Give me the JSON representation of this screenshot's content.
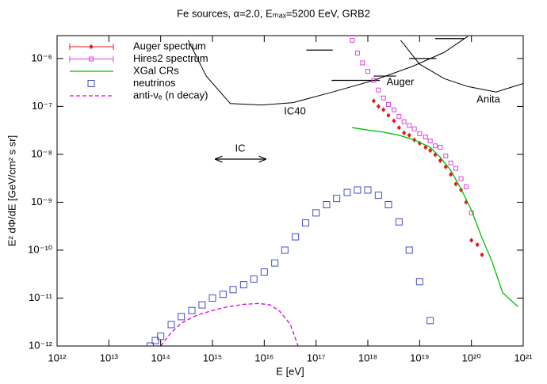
{
  "chart_data": {
    "type": "line",
    "title": "Fe sources, α=2.0, Eₘₐₓ=5200 EeV, GRB2",
    "x_label": "E [eV]",
    "y_label": "E² dΦ/dE [GeV/cm² s sr]",
    "log_x": true,
    "log_y": true,
    "xlim": [
      1000000000000.0,
      1e+21
    ],
    "ylim": [
      1e-12,
      3e-06
    ],
    "xticks": [
      {
        "value": 1000000000000.0,
        "label": "10¹²"
      },
      {
        "value": 10000000000000.0,
        "label": "10¹³"
      },
      {
        "value": 100000000000000.0,
        "label": "10¹⁴"
      },
      {
        "value": 1000000000000000.0,
        "label": "10¹⁵"
      },
      {
        "value": 1e+16,
        "label": "10¹⁶"
      },
      {
        "value": 1e+17,
        "label": "10¹⁷"
      },
      {
        "value": 1e+18,
        "label": "10¹⁸"
      },
      {
        "value": 1e+19,
        "label": "10¹⁹"
      },
      {
        "value": 1e+20,
        "label": "10²⁰"
      },
      {
        "value": 1e+21,
        "label": "10²¹"
      }
    ],
    "yticks": [
      {
        "value": 1e-12,
        "label": "10⁻¹²"
      },
      {
        "value": 1e-11,
        "label": "10⁻¹¹"
      },
      {
        "value": 1e-10,
        "label": "10⁻¹⁰"
      },
      {
        "value": 1e-09,
        "label": "10⁻⁹"
      },
      {
        "value": 1e-08,
        "label": "10⁻⁸"
      },
      {
        "value": 1e-07,
        "label": "10⁻⁷"
      },
      {
        "value": 1e-06,
        "label": "10⁻⁶"
      }
    ],
    "legend": "top-left",
    "series": [
      {
        "name": "Auger spectrum",
        "color": "#e41a1c",
        "style": "filled-circle",
        "x": [
          1.3e+18,
          1.6e+18,
          2e+18,
          2.5e+18,
          3.2e+18,
          4e+18,
          5e+18,
          6.3e+18,
          7.9e+18,
          1e+19,
          1.3e+19,
          1.6e+19,
          2e+19,
          2.5e+19,
          3.2e+19,
          4e+19,
          5e+19,
          6.3e+19,
          7.9e+19,
          1e+20,
          1.3e+20,
          1.6e+20
        ],
        "values": [
          1.3e-07,
          1e-07,
          8.5e-08,
          6.5e-08,
          5e-08,
          3.6e-08,
          2.8e-08,
          2.5e-08,
          2e-08,
          1.7e-08,
          1.4e-08,
          1.2e-08,
          9.8e-09,
          7.4e-09,
          5.5e-09,
          3.8e-09,
          2.4e-09,
          1.8e-09,
          1e-09,
          1.6e-10,
          1.3e-10,
          8e-11
        ]
      },
      {
        "name": "Hires2 spectrum",
        "color": "#e040e0",
        "style": "open-square-small",
        "x": [
          5e+17,
          6.3e+17,
          7.9e+17,
          1e+18,
          1.3e+18,
          1.6e+18,
          2e+18,
          2.5e+18,
          3.2e+18,
          4e+18,
          5e+18,
          6.3e+18,
          7.9e+18,
          1e+19,
          1.3e+19,
          1.6e+19,
          2e+19,
          2.5e+19,
          3.2e+19,
          4e+19,
          5e+19,
          6.3e+19,
          7.9e+19,
          1e+20
        ],
        "values": [
          2.4e-06,
          1.3e-06,
          8.1e-07,
          5.4e-07,
          3.5e-07,
          2.2e-07,
          1.5e-07,
          1.1e-07,
          8.5e-08,
          6.2e-08,
          4.8e-08,
          4e-08,
          3.4e-08,
          2.7e-08,
          2.3e-08,
          1.9e-08,
          1.5e-08,
          1.4e-08,
          9.3e-09,
          6.6e-09,
          5.1e-09,
          3.1e-09,
          2.1e-09,
          6e-10
        ]
      },
      {
        "name": "XGal CRs",
        "color": "#00c000",
        "style": "line",
        "x": [
          5e+17,
          1e+18,
          2e+18,
          4e+18,
          7.9e+18,
          1.6e+19,
          2.5e+19,
          4e+19,
          6.3e+19,
          1e+20,
          1.6e+20,
          2.5e+20,
          4e+20,
          7.9e+20
        ],
        "values": [
          3.6e-08,
          3.2e-08,
          2.9e-08,
          2.5e-08,
          2e-08,
          1.4e-08,
          8.7e-09,
          4.6e-09,
          1.9e-09,
          6.8e-10,
          1.8e-10,
          5.8e-11,
          1.3e-11,
          6.6e-12
        ]
      },
      {
        "name": "neutrinos",
        "color": "#4050c8",
        "style": "open-square",
        "x": [
          63000000000000.0,
          79000000000000.0,
          100000000000000.0,
          160000000000000.0,
          250000000000000.0,
          400000000000000.0,
          630000000000000.0,
          1000000000000000.0,
          1600000000000000.0,
          2500000000000000.0,
          4000000000000000.0,
          6300000000000000.0,
          1e+16,
          1.6e+16,
          2.5e+16,
          4e+16,
          6.3e+16,
          1e+17,
          1.6e+17,
          2.5e+17,
          4e+17,
          6.3e+17,
          1e+18,
          1.6e+18,
          2.5e+18,
          4e+18,
          6.3e+18,
          1e+19,
          1.6e+19
        ],
        "values": [
          1e-12,
          1.3e-12,
          1.6e-12,
          2.8e-12,
          4.1e-12,
          5.5e-12,
          7.2e-12,
          1e-11,
          1.2e-11,
          1.5e-11,
          1.9e-11,
          2.5e-11,
          3.5e-11,
          5.4e-11,
          1e-10,
          1.9e-10,
          3.7e-10,
          6e-10,
          8.9e-10,
          1.2e-09,
          1.6e-09,
          1.8e-09,
          1.8e-09,
          1.4e-09,
          8.9e-10,
          3.9e-10,
          1e-10,
          2.2e-11,
          3.4e-12
        ]
      },
      {
        "name": "anti-νₑ (n decay)",
        "color": "#e000e0",
        "style": "dashed",
        "x": [
          100000000000000.0,
          160000000000000.0,
          250000000000000.0,
          500000000000000.0,
          1000000000000000.0,
          2000000000000000.0,
          4000000000000000.0,
          7900000000000000.0,
          1.3e+16,
          2e+16,
          3.2e+16,
          4.5e+16
        ],
        "values": [
          1e-12,
          1.9e-12,
          3e-12,
          4.4e-12,
          5.5e-12,
          6.6e-12,
          7.4e-12,
          7.7e-12,
          7.2e-12,
          5.3e-12,
          2.8e-12,
          1e-12
        ]
      }
    ],
    "limits": [
      {
        "label": "IC40",
        "color": "#000000",
        "x": [
          340000000000000.0,
          760000000000000.0,
          2200000000000000.0,
          8900000000000000.0,
          3.6e+16,
          2.1e+17,
          1.3e+18,
          7.2e+18,
          3e+19,
          8.5e+19
        ],
        "values": [
          2.4e-06,
          4.3e-07,
          1.15e-07,
          1.07e-07,
          1.2e-07,
          2e-07,
          3.5e-07,
          6.8e-07,
          1.35e-06,
          2.9e-06
        ]
      },
      {
        "label": "Anita",
        "color": "#000000",
        "x": [
          4.3e+18,
          1e+19,
          3e+19,
          8.5e+19,
          3e+20,
          1e+21
        ],
        "values": [
          2.4e-06,
          7.6e-07,
          3.8e-07,
          2.6e-07,
          2e-07,
          3e-07
        ]
      }
    ],
    "steps": {
      "label": "Auger",
      "color": "#000000",
      "segments": [
        {
          "x": [
            6.5e+16,
            2.1e+17
          ],
          "value": 1.5e-06
        },
        {
          "x": [
            2e+17,
            1.7e+18
          ],
          "value": 3.5e-07
        },
        {
          "x": [
            1.3e+18,
            3.5e+18
          ],
          "value": 4.3e-07
        },
        {
          "x": [
            6.3e+18,
            2.1e+19
          ],
          "value": 1e-06
        },
        {
          "x": [
            2e+19,
            7.2e+19
          ],
          "value": 2.6e-06
        }
      ]
    },
    "annotation": "IC"
  }
}
